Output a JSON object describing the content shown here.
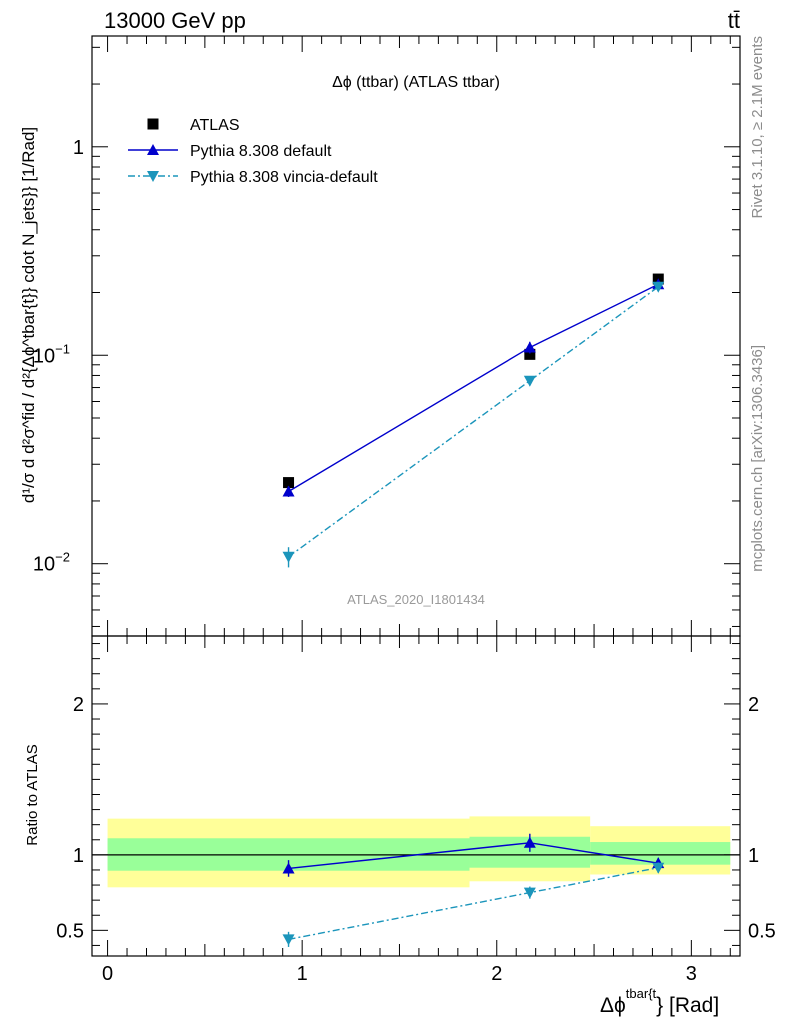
{
  "header": {
    "left": "13000 GeV pp",
    "right": "tt̄"
  },
  "side_text": {
    "rivet": "Rivet 3.1.10, ≥ 2.1M events",
    "mcplots": "mcplots.cern.ch [arXiv:1306.3436]"
  },
  "chart_data": [
    {
      "type": "line",
      "title": "Δϕ (ttbar) (ATLAS ttbar)",
      "watermark": "ATLAS_2020_I1801434",
      "ylabel": "d¹/σ d d²σ^fid / d²{Δϕ^tbar{t}} cdot N_jets}} [1/Rad]",
      "yscale": "log",
      "ylim": [
        0.0045,
        3.4
      ],
      "xlim": [
        -0.08,
        3.25
      ],
      "y_ticks": [
        {
          "value": 1,
          "label": "1"
        },
        {
          "value": 0.1,
          "label": "10",
          "exp": "−1"
        },
        {
          "value": 0.01,
          "label": "10",
          "exp": "−2"
        }
      ],
      "legend_placement": "top-left",
      "series": [
        {
          "name": "ATLAS",
          "color": "#000000",
          "marker": "square",
          "x": [
            0.93,
            2.17,
            2.83
          ],
          "y": [
            0.0245,
            0.101,
            0.232
          ],
          "yerr": [
            0.001,
            0.004,
            0.008
          ]
        },
        {
          "name": "Pythia 8.308 default",
          "color": "#0000cc",
          "marker": "triangle-up",
          "line": "solid",
          "x": [
            0.93,
            2.17,
            2.83
          ],
          "y": [
            0.0222,
            0.109,
            0.219
          ],
          "yerr": [
            0.0013,
            0.007,
            0.008
          ]
        },
        {
          "name": "Pythia 8.308 vincia-default",
          "color": "#1b95bb",
          "marker": "triangle-down",
          "line": "dashdot",
          "x": [
            0.93,
            2.17,
            2.83
          ],
          "y": [
            0.0108,
            0.0755,
            0.213
          ],
          "yerr": [
            0.0012,
            0.004,
            0.008
          ]
        }
      ]
    },
    {
      "type": "line",
      "ylabel": "Ratio to ATLAS",
      "xlabel": "Δϕ",
      "xlabel_sup": "tbar{t",
      "xlabel_suffix": "} [Rad]",
      "ylim": [
        0.33,
        2.45
      ],
      "xlim": [
        -0.08,
        3.25
      ],
      "x_ticks": [
        {
          "value": 0,
          "label": "0"
        },
        {
          "value": 1,
          "label": "1"
        },
        {
          "value": 2,
          "label": "2"
        },
        {
          "value": 3,
          "label": "3"
        }
      ],
      "y_ticks": [
        {
          "value": 0.5,
          "label": "0.5"
        },
        {
          "value": 1,
          "label": "1"
        },
        {
          "value": 2,
          "label": "2"
        }
      ],
      "bands": [
        {
          "x0": 0,
          "x1": 1.86,
          "inner": [
            0.895,
            1.11
          ],
          "outer": [
            0.785,
            1.24
          ]
        },
        {
          "x0": 1.86,
          "x1": 2.48,
          "inner": [
            0.915,
            1.12
          ],
          "outer": [
            0.825,
            1.255
          ]
        },
        {
          "x0": 2.48,
          "x1": 3.2,
          "inner": [
            0.935,
            1.085
          ],
          "outer": [
            0.87,
            1.19
          ]
        }
      ],
      "band_colors": {
        "inner": "#99ff99",
        "outer": "#ffff99"
      },
      "series": [
        {
          "name": "Pythia 8.308 default",
          "color": "#0000cc",
          "marker": "triangle-up",
          "line": "solid",
          "x": [
            0.93,
            2.17,
            2.83
          ],
          "y": [
            0.91,
            1.08,
            0.945
          ],
          "yerr": [
            0.055,
            0.06,
            0.035
          ]
        },
        {
          "name": "Pythia 8.308 vincia-default",
          "color": "#1b95bb",
          "marker": "triangle-down",
          "line": "dashdot",
          "x": [
            0.93,
            2.17,
            2.83
          ],
          "y": [
            0.44,
            0.75,
            0.915
          ],
          "yerr": [
            0.05,
            0.04,
            0.035
          ]
        }
      ]
    }
  ]
}
